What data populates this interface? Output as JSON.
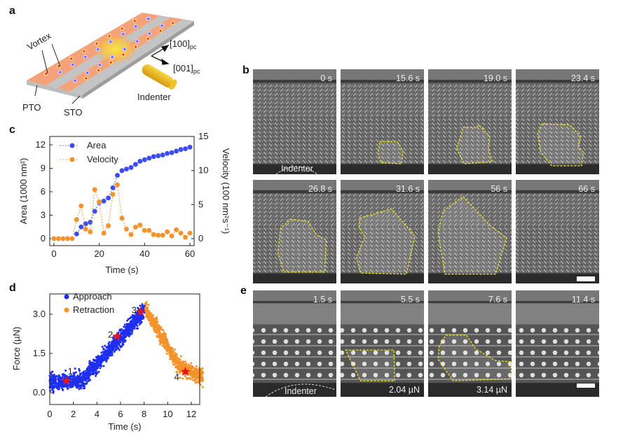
{
  "panels": {
    "a": "a",
    "b": "b",
    "c": "c",
    "d": "d",
    "e": "e"
  },
  "schematic": {
    "vortex": "Vortex",
    "pto": "PTO",
    "sto": "STO",
    "indenter": "Indenter",
    "axis1": "[100]",
    "axis1_sub": "pc",
    "axis2": "[001]",
    "axis2_sub": "pc",
    "colors": {
      "pto": "#f4a27a",
      "sto": "#c4c4c4",
      "indenter": "#e9b81c",
      "blob": "#f5d742"
    }
  },
  "micrographs_b": [
    {
      "time": "0 s",
      "indenter_label": "Indenter"
    },
    {
      "time": "15.6 s"
    },
    {
      "time": "19.0 s"
    },
    {
      "time": "23.4 s"
    },
    {
      "time": "26.8 s"
    },
    {
      "time": "31.6 s"
    },
    {
      "time": "56 s"
    },
    {
      "time": "66 s",
      "scale_bar": true
    }
  ],
  "micrographs_e": [
    {
      "time": "1.5 s",
      "indenter_label": "Indenter"
    },
    {
      "time": "5.5 s",
      "force": "2.04 µN"
    },
    {
      "time": "7.6 s",
      "force": "3.14 µN"
    },
    {
      "time": "11.4 s",
      "scale_bar": true
    }
  ],
  "chart_data": [
    {
      "id": "c",
      "type": "line",
      "xlabel": "Time (s)",
      "ylabel": "Area (1000 nm²)",
      "y2label": "Velocity (100 nm²s⁻¹)",
      "xlim": [
        -2,
        62
      ],
      "ylim": [
        -0.9,
        13.1
      ],
      "y2lim": [
        -1,
        15
      ],
      "xticks": [
        0,
        20,
        40,
        60
      ],
      "yticks": [
        0,
        3,
        6,
        9,
        12
      ],
      "y2ticks": [
        0,
        5,
        10,
        15
      ],
      "legend": "top-left",
      "x": [
        0,
        2,
        4,
        6,
        8,
        10,
        12,
        14,
        16,
        18,
        20,
        22,
        24,
        26,
        28,
        30,
        32,
        34,
        36,
        38,
        40,
        42,
        44,
        46,
        48,
        50,
        52,
        54,
        56,
        58,
        60
      ],
      "series": [
        {
          "name": "Area",
          "axis": "left",
          "color": "#3a4cf2",
          "values": [
            0,
            0,
            0,
            0,
            0,
            0.6,
            1.5,
            1.9,
            2.1,
            3.5,
            4.6,
            4.8,
            5.2,
            6.5,
            8.1,
            8.7,
            8.9,
            9.1,
            9.5,
            9.9,
            10.1,
            10.3,
            10.5,
            10.6,
            10.7,
            10.9,
            11.0,
            11.2,
            11.4,
            11.5,
            11.7
          ]
        },
        {
          "name": "Velocity",
          "axis": "right",
          "color": "#f5922a",
          "values": [
            0,
            0,
            0,
            0,
            0,
            2.8,
            4.8,
            1.4,
            1.0,
            7.2,
            5.4,
            0.8,
            1.9,
            6.5,
            7.9,
            3.0,
            1.4,
            0.6,
            1.7,
            2.0,
            1.2,
            1.2,
            0.6,
            0.5,
            0.5,
            1.0,
            0.4,
            1.3,
            0.8,
            0.2,
            0.8
          ]
        }
      ]
    },
    {
      "id": "d",
      "type": "scatter",
      "xlabel": "Time (s)",
      "ylabel": "Force (µN)",
      "xlim": [
        0,
        13
      ],
      "ylim": [
        -0.5,
        3.8
      ],
      "xticks": [
        0,
        2,
        4,
        6,
        8,
        10,
        12
      ],
      "yticks": [
        "0.0",
        "1.5",
        "3.0"
      ],
      "legend": "top-left",
      "series": [
        {
          "name": "Approach",
          "color": "#1f2ff0",
          "noise": 0.15,
          "trend": [
            [
              0,
              0.4
            ],
            [
              2.7,
              0.45
            ],
            [
              8.1,
              3.15
            ]
          ]
        },
        {
          "name": "Retraction",
          "color": "#f5922a",
          "noise": 0.15,
          "trend": [
            [
              8.1,
              3.2
            ],
            [
              11,
              1.0
            ],
            [
              13,
              0.6
            ]
          ]
        }
      ],
      "markers": [
        {
          "label": "1",
          "x": 1.4,
          "y": 0.45
        },
        {
          "label": "2",
          "x": 5.7,
          "y": 2.15
        },
        {
          "label": "3",
          "x": 7.7,
          "y": 3.1
        },
        {
          "label": "4",
          "x": 11.5,
          "y": 0.8
        }
      ],
      "marker_color": "#e8141e"
    }
  ]
}
